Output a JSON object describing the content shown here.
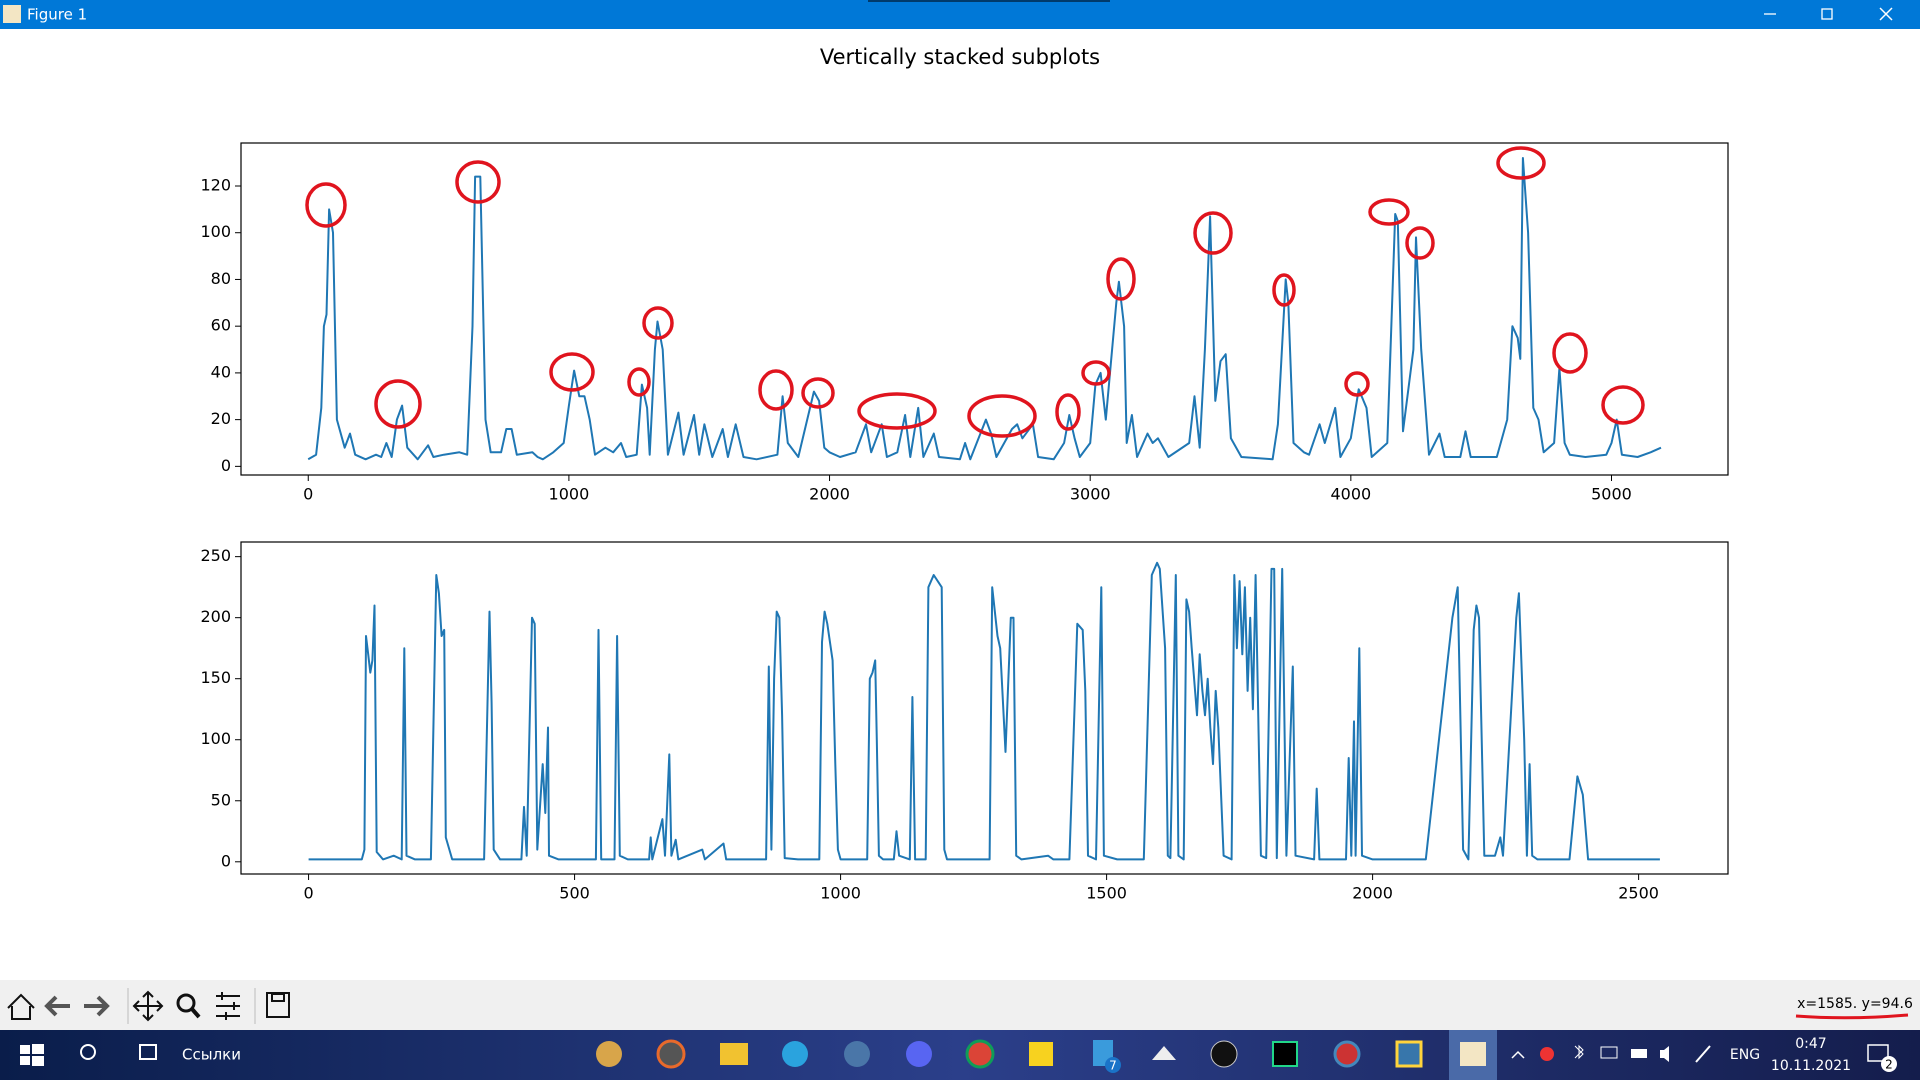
{
  "window": {
    "title": "Figure 1"
  },
  "figure": {
    "title": "Vertically stacked subplots"
  },
  "chart_data": [
    {
      "type": "line",
      "x": [
        0,
        30,
        50,
        60,
        70,
        80,
        95,
        110,
        140,
        160,
        180,
        220,
        260,
        280,
        300,
        320,
        340,
        360,
        380,
        420,
        460,
        480,
        520,
        580,
        610,
        630,
        640,
        660,
        680,
        700,
        740,
        760,
        780,
        800,
        860,
        880,
        900,
        940,
        980,
        1000,
        1020,
        1040,
        1060,
        1080,
        1100,
        1140,
        1170,
        1200,
        1220,
        1260,
        1280,
        1300,
        1310,
        1330,
        1340,
        1360,
        1380,
        1420,
        1440,
        1480,
        1500,
        1520,
        1550,
        1590,
        1610,
        1640,
        1670,
        1720,
        1800,
        1820,
        1840,
        1880,
        1940,
        1960,
        1980,
        2000,
        2040,
        2100,
        2140,
        2160,
        2200,
        2220,
        2260,
        2290,
        2310,
        2340,
        2360,
        2400,
        2420,
        2500,
        2520,
        2540,
        2600,
        2620,
        2640,
        2700,
        2720,
        2740,
        2780,
        2800,
        2860,
        2900,
        2920,
        2940,
        2960,
        3000,
        3020,
        3040,
        3060,
        3100,
        3110,
        3130,
        3140,
        3160,
        3180,
        3220,
        3240,
        3260,
        3300,
        3380,
        3400,
        3420,
        3440,
        3460,
        3480,
        3500,
        3520,
        3540,
        3580,
        3700,
        3720,
        3750,
        3760,
        3780,
        3820,
        3840,
        3880,
        3900,
        3940,
        3960,
        4000,
        4030,
        4060,
        4080,
        4140,
        4170,
        4180,
        4200,
        4240,
        4250,
        4270,
        4300,
        4340,
        4360,
        4420,
        4440,
        4460,
        4560,
        4600,
        4620,
        4640,
        4650,
        4660,
        4680,
        4700,
        4720,
        4740,
        4780,
        4800,
        4820,
        4840,
        4900,
        4980,
        5000,
        5020,
        5040,
        5100,
        5150,
        5190
      ],
      "series": [
        {
          "color": "#1f77b4",
          "values": [
            3,
            5,
            25,
            60,
            65,
            110,
            100,
            20,
            8,
            14,
            5,
            3,
            5,
            4,
            10,
            4,
            20,
            26,
            8,
            3,
            9,
            4,
            5,
            6,
            5,
            60,
            124,
            124,
            20,
            6,
            6,
            16,
            16,
            5,
            6,
            4,
            3,
            6,
            10,
            26,
            41,
            30,
            30,
            20,
            5,
            8,
            6,
            10,
            4,
            5,
            35,
            25,
            5,
            50,
            62,
            50,
            5,
            23,
            5,
            22,
            5,
            18,
            4,
            16,
            4,
            18,
            4,
            3,
            5,
            30,
            10,
            4,
            32,
            28,
            8,
            6,
            4,
            6,
            18,
            6,
            18,
            4,
            6,
            22,
            4,
            25,
            4,
            14,
            4,
            3,
            10,
            3,
            20,
            14,
            4,
            16,
            18,
            12,
            18,
            4,
            3,
            10,
            22,
            12,
            4,
            10,
            35,
            40,
            20,
            70,
            79,
            60,
            10,
            22,
            4,
            14,
            10,
            12,
            4,
            10,
            30,
            8,
            50,
            107,
            28,
            45,
            48,
            12,
            4,
            3,
            18,
            80,
            70,
            10,
            6,
            5,
            18,
            10,
            25,
            4,
            12,
            33,
            25,
            4,
            10,
            108,
            105,
            15,
            50,
            98,
            50,
            5,
            14,
            4,
            4,
            15,
            4,
            4,
            20,
            60,
            55,
            46,
            132,
            100,
            25,
            20,
            6,
            10,
            42,
            10,
            5,
            4,
            5,
            10,
            20,
            5,
            4,
            6,
            8
          ]
        }
      ],
      "xlim": [
        -258,
        5447
      ],
      "ylim": [
        -3.7,
        138.4
      ],
      "xticks": [
        0,
        1000,
        2000,
        3000,
        4000,
        5000
      ],
      "yticks": [
        0,
        20,
        40,
        60,
        80,
        100,
        120
      ]
    },
    {
      "type": "line",
      "x": [
        0,
        100,
        105,
        108,
        112,
        116,
        120,
        124,
        128,
        140,
        160,
        175,
        180,
        184,
        200,
        230,
        240,
        245,
        250,
        255,
        258,
        270,
        330,
        340,
        344,
        348,
        360,
        400,
        405,
        410,
        420,
        425,
        430,
        440,
        445,
        450,
        452,
        470,
        540,
        545,
        550,
        575,
        580,
        585,
        600,
        640,
        643,
        646,
        665,
        670,
        678,
        682,
        690,
        695,
        740,
        745,
        780,
        785,
        860,
        865,
        870,
        875,
        880,
        885,
        890,
        895,
        920,
        960,
        965,
        970,
        975,
        985,
        990,
        995,
        1000,
        1050,
        1055,
        1060,
        1065,
        1068,
        1072,
        1080,
        1100,
        1105,
        1110,
        1130,
        1135,
        1140,
        1160,
        1165,
        1175,
        1190,
        1195,
        1200,
        1280,
        1285,
        1295,
        1300,
        1310,
        1320,
        1325,
        1330,
        1340,
        1390,
        1400,
        1430,
        1440,
        1445,
        1455,
        1460,
        1465,
        1480,
        1490,
        1495,
        1520,
        1570,
        1585,
        1595,
        1600,
        1610,
        1615,
        1620,
        1630,
        1635,
        1645,
        1650,
        1655,
        1660,
        1670,
        1675,
        1680,
        1685,
        1690,
        1695,
        1700,
        1705,
        1710,
        1720,
        1735,
        1740,
        1745,
        1750,
        1755,
        1760,
        1765,
        1770,
        1775,
        1780,
        1790,
        1800,
        1810,
        1815,
        1820,
        1830,
        1838,
        1850,
        1855,
        1890,
        1895,
        1900,
        1950,
        1955,
        1960,
        1965,
        1968,
        1975,
        1980,
        2000,
        2100,
        2150,
        2160,
        2170,
        2180,
        2190,
        2195,
        2200,
        2210,
        2230,
        2240,
        2245,
        2270,
        2275,
        2285,
        2290,
        2295,
        2300,
        2310,
        2370,
        2385,
        2395,
        2405,
        2540
      ],
      "series": [
        {
          "color": "#1f77b4",
          "values": [
            2,
            2,
            10,
            185,
            170,
            155,
            165,
            210,
            8,
            2,
            5,
            2,
            175,
            5,
            2,
            2,
            235,
            220,
            185,
            190,
            20,
            2,
            2,
            205,
            130,
            10,
            2,
            2,
            45,
            5,
            200,
            195,
            10,
            80,
            40,
            110,
            5,
            2,
            2,
            190,
            2,
            2,
            185,
            5,
            2,
            2,
            20,
            2,
            35,
            5,
            88,
            5,
            18,
            2,
            10,
            2,
            15,
            2,
            2,
            160,
            10,
            150,
            205,
            200,
            120,
            3,
            2,
            2,
            180,
            205,
            195,
            165,
            80,
            10,
            2,
            2,
            150,
            155,
            165,
            100,
            5,
            2,
            2,
            25,
            5,
            2,
            135,
            2,
            2,
            225,
            235,
            225,
            10,
            2,
            2,
            225,
            185,
            175,
            90,
            200,
            200,
            5,
            2,
            5,
            2,
            2,
            130,
            195,
            190,
            140,
            5,
            2,
            225,
            5,
            2,
            2,
            235,
            245,
            240,
            175,
            5,
            3,
            235,
            5,
            2,
            215,
            205,
            175,
            120,
            170,
            140,
            120,
            150,
            110,
            80,
            140,
            110,
            5,
            2,
            235,
            175,
            230,
            170,
            225,
            140,
            200,
            125,
            235,
            5,
            3,
            240,
            240,
            3,
            240,
            5,
            160,
            5,
            2,
            60,
            2,
            2,
            85,
            5,
            115,
            5,
            175,
            5,
            2,
            2,
            200,
            225,
            10,
            2,
            190,
            210,
            200,
            5,
            5,
            20,
            5,
            200,
            220,
            100,
            5,
            80,
            5,
            2,
            2,
            70,
            55,
            2,
            2
          ]
        }
      ],
      "xlim": [
        -127,
        2668
      ],
      "ylim": [
        -10,
        262
      ],
      "xticks": [
        0,
        500,
        1000,
        1500,
        2000,
        2500
      ],
      "yticks": [
        0,
        50,
        100,
        150,
        200,
        250
      ]
    }
  ],
  "status": {
    "coordinates": "x=1585. y=94.6"
  },
  "taskbar": {
    "toolbar_label": "Ссылки",
    "language": "ENG",
    "time": "0:47",
    "date": "10.11.2021",
    "badges": [
      "7",
      "2"
    ]
  }
}
